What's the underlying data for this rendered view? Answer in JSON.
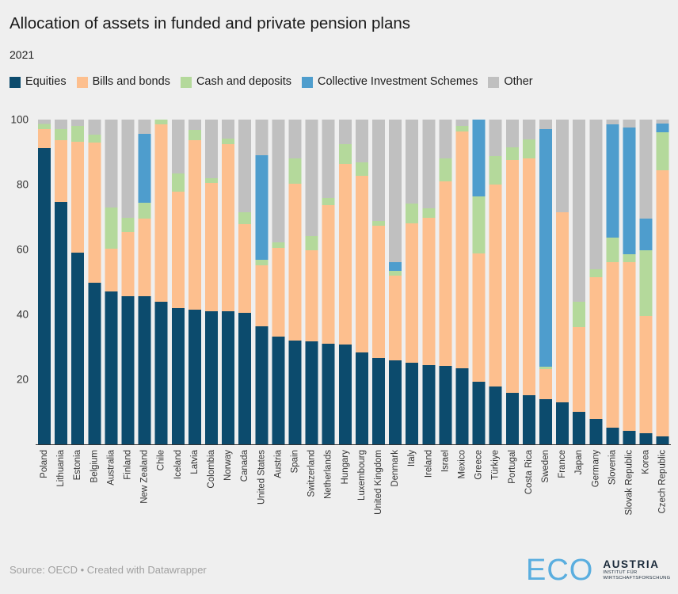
{
  "chart_data": {
    "type": "bar",
    "stacked": true,
    "title": "Allocation of assets in funded and private pension plans",
    "subtitle": "2021",
    "legend_position": "top",
    "grid": false,
    "ylim": [
      0,
      100
    ],
    "yticks": [
      20,
      40,
      60,
      80,
      100
    ],
    "categories": [
      "Poland",
      "Lithuania",
      "Estonia",
      "Belgium",
      "Australia",
      "Finland",
      "New Zealand",
      "Chile",
      "Iceland",
      "Latvia",
      "Colombia",
      "Norway",
      "Canada",
      "United States",
      "Austria",
      "Spain",
      "Switzerland",
      "Netherlands",
      "Hungary",
      "Luxembourg",
      "United Kingdom",
      "Denmark",
      "Italy",
      "Ireland",
      "Israel",
      "Mexico",
      "Greece",
      "Türkiye",
      "Portugal",
      "Costa Rica",
      "Sweden",
      "France",
      "Japan",
      "Germany",
      "Slovenia",
      "Slovak Republic",
      "Korea",
      "Czech Republic"
    ],
    "series": [
      {
        "name": "Equities",
        "color": "#0c4b6d",
        "values": [
          91.2,
          74.6,
          59.0,
          49.8,
          47.1,
          45.6,
          45.6,
          43.9,
          42.0,
          41.5,
          41.0,
          41.0,
          40.5,
          36.3,
          33.2,
          32.0,
          31.7,
          31.0,
          30.7,
          28.3,
          26.6,
          25.9,
          25.1,
          24.4,
          24.1,
          23.4,
          19.3,
          17.8,
          15.9,
          15.1,
          13.9,
          12.9,
          10.0,
          7.8,
          5.1,
          4.1,
          3.4,
          2.4
        ]
      },
      {
        "name": "Bills and bonds",
        "color": "#fdbf8e",
        "values": [
          5.9,
          19.1,
          34.2,
          43.1,
          13.1,
          19.8,
          23.9,
          54.6,
          35.8,
          52.2,
          39.5,
          51.4,
          27.3,
          18.8,
          27.3,
          48.2,
          28.1,
          42.7,
          55.6,
          54.4,
          40.7,
          26.1,
          42.9,
          45.4,
          56.9,
          72.9,
          39.5,
          62.2,
          71.7,
          72.9,
          9.3,
          58.6,
          26.1,
          43.7,
          51.0,
          52.0,
          36.1,
          82.0
        ]
      },
      {
        "name": "Cash and deposits",
        "color": "#b4d99b",
        "values": [
          1.5,
          3.4,
          4.8,
          2.5,
          12.7,
          4.4,
          4.9,
          1.5,
          5.6,
          3.1,
          1.5,
          1.7,
          3.7,
          1.7,
          1.7,
          7.8,
          4.3,
          2.2,
          6.1,
          4.1,
          1.5,
          1.4,
          6.1,
          2.9,
          7.0,
          1.7,
          17.5,
          8.8,
          3.9,
          5.9,
          0.7,
          0,
          7.8,
          2.4,
          7.6,
          2.4,
          20.3,
          11.7
        ]
      },
      {
        "name": "Collective Investment Schemes",
        "color": "#4e9dcd",
        "values": [
          0,
          0,
          0,
          0,
          0,
          0,
          21.2,
          0,
          0,
          0,
          0,
          0,
          0,
          32.2,
          0,
          0,
          0,
          0,
          0,
          0,
          0,
          2.7,
          0,
          0,
          0,
          0,
          23.7,
          0,
          0,
          0,
          73.2,
          0,
          0,
          0,
          34.8,
          39.1,
          9.7,
          2.7
        ]
      },
      {
        "name": "Other",
        "color": "#c0c0c0",
        "values": [
          1.4,
          2.9,
          2.0,
          4.6,
          27.1,
          30.2,
          4.4,
          0,
          16.6,
          3.2,
          18.0,
          5.9,
          28.5,
          11.0,
          37.8,
          12.0,
          35.9,
          24.1,
          7.6,
          13.2,
          31.2,
          43.9,
          25.9,
          27.3,
          12.0,
          2.0,
          0,
          11.2,
          8.5,
          6.1,
          2.9,
          28.5,
          56.1,
          46.1,
          1.5,
          2.4,
          30.5,
          1.2
        ]
      }
    ]
  },
  "footer": {
    "text": "Source: OECD • Created with Datawrapper"
  },
  "logo": {
    "mark": "ECO",
    "name": "AUSTRIA",
    "line1": "INSTITUT FÜR",
    "line2": "WIRTSCHAFTSFORSCHUNG"
  }
}
